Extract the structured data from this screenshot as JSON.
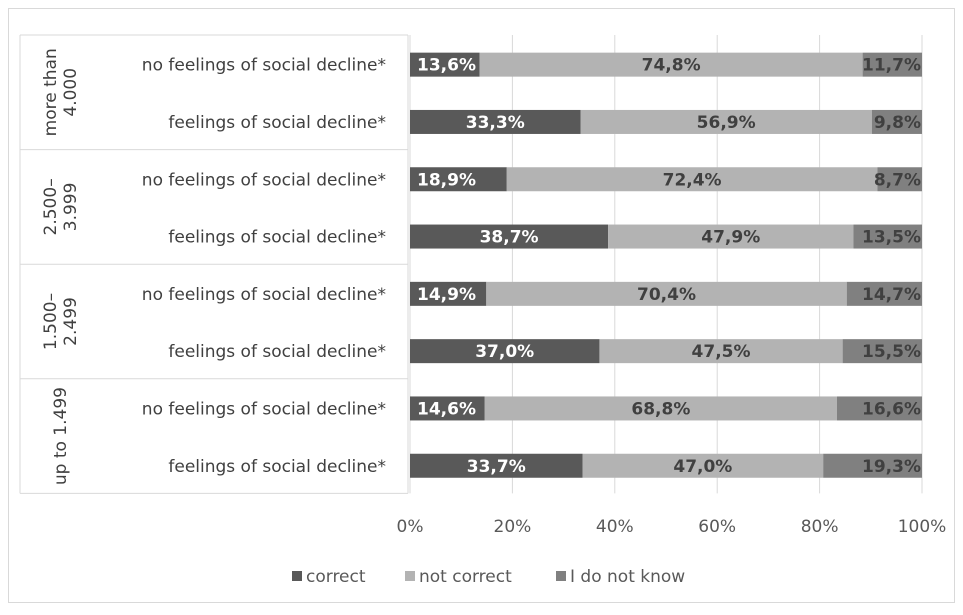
{
  "chart_data": {
    "type": "bar",
    "orientation": "horizontal",
    "stacked": true,
    "percent": true,
    "groups": [
      {
        "label": "more than 4.000",
        "label_lines": [
          "more than",
          "4.000"
        ],
        "rows": [
          {
            "label": "no feelings of social decline*",
            "values": [
              13.6,
              74.8,
              11.7
            ],
            "labels": [
              "13,6%",
              "74,8%",
              "11,7%"
            ]
          },
          {
            "label": "feelings of social decline*",
            "values": [
              33.3,
              56.9,
              9.8
            ],
            "labels": [
              "33,3%",
              "56,9%",
              "9,8%"
            ]
          }
        ]
      },
      {
        "label": "2.500–3.999",
        "label_lines": [
          "2.500–",
          "3.999"
        ],
        "rows": [
          {
            "label": "no feelings of social decline*",
            "values": [
              18.9,
              72.4,
              8.7
            ],
            "labels": [
              "18,9%",
              "72,4%",
              "8,7%"
            ]
          },
          {
            "label": "feelings of social decline*",
            "values": [
              38.7,
              47.9,
              13.5
            ],
            "labels": [
              "38,7%",
              "47,9%",
              "13,5%"
            ]
          }
        ]
      },
      {
        "label": "1.500–2.499",
        "label_lines": [
          "1.500–",
          "2.499"
        ],
        "rows": [
          {
            "label": "no feelings of social decline*",
            "values": [
              14.9,
              70.4,
              14.7
            ],
            "labels": [
              "14,9%",
              "70,4%",
              "14,7%"
            ]
          },
          {
            "label": "feelings of social decline*",
            "values": [
              37.0,
              47.5,
              15.5
            ],
            "labels": [
              "37,0%",
              "47,5%",
              "15,5%"
            ]
          }
        ]
      },
      {
        "label": "up to 1.499",
        "label_lines": [
          "up to 1.499"
        ],
        "rows": [
          {
            "label": "no feelings of social decline*",
            "values": [
              14.6,
              68.8,
              16.6
            ],
            "labels": [
              "14,6%",
              "68,8%",
              "16,6%"
            ]
          },
          {
            "label": "feelings of social decline*",
            "values": [
              33.7,
              47.0,
              19.3
            ],
            "labels": [
              "33,7%",
              "47,0%",
              "19,3%"
            ]
          }
        ]
      }
    ],
    "series": [
      {
        "name": "correct",
        "color": "#595959",
        "label_color": "#ffffff"
      },
      {
        "name": "not correct",
        "color": "#b3b3b3",
        "label_color": "#404040"
      },
      {
        "name": "I do not know",
        "color": "#808080",
        "label_color": "#404040"
      }
    ],
    "x_ticks": [
      "0%",
      "20%",
      "40%",
      "60%",
      "80%",
      "100%"
    ],
    "xlim": [
      0,
      100
    ],
    "grid": true,
    "legend_position": "bottom"
  }
}
